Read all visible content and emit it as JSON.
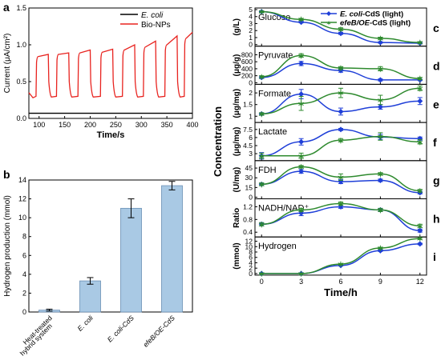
{
  "chart_data": [
    {
      "panel": "a",
      "type": "line",
      "xlabel": "Time/s",
      "ylabel": "Current (μA/cm²)",
      "xlim": [
        80,
        400
      ],
      "ylim": [
        0,
        1.5
      ],
      "xticks": [
        100,
        150,
        200,
        250,
        300,
        350,
        400
      ],
      "yticks": [
        0.0,
        0.5,
        1.0,
        1.5
      ],
      "legend": "top-right",
      "series": [
        {
          "name": "E. coli",
          "color": "#000000",
          "baseline": 0.07
        },
        {
          "name": "Bio-NPs",
          "color": "#e8231f",
          "off_level": 0.28,
          "on_periods": [
            [
              94,
              118,
              0.84,
              0.87
            ],
            [
              134,
              158,
              0.87,
              0.89
            ],
            [
              176,
              200,
              0.89,
              0.93
            ],
            [
              220,
              244,
              0.9,
              0.94
            ],
            [
              263,
              287,
              0.93,
              1.0
            ],
            [
              304,
              328,
              0.97,
              1.05
            ],
            [
              346,
              370,
              1.0,
              1.12
            ],
            [
              384,
              400,
              1.09,
              1.17
            ]
          ]
        }
      ]
    },
    {
      "panel": "b",
      "type": "bar",
      "ylabel": "Hydrogen production (mmol)",
      "ylim": [
        0,
        14
      ],
      "yticks": [
        0,
        2,
        4,
        6,
        8,
        10,
        12,
        14
      ],
      "categories": [
        "Heat-treated hybrid system",
        "E. coli",
        "E. coli-CdS",
        "efeB/OE-CdS"
      ],
      "values": [
        0.2,
        3.3,
        11.0,
        13.4
      ],
      "errors": [
        0.1,
        0.35,
        1.0,
        0.45
      ],
      "color": "#a9c9e4"
    },
    {
      "panel": "c-i",
      "type": "line",
      "xlabel": "Time/h",
      "ylabel": "Concentration",
      "x": [
        0,
        3,
        6,
        9,
        12
      ],
      "xlim": [
        -0.5,
        12.5
      ],
      "xticks": [
        0,
        3,
        6,
        9,
        12
      ],
      "legend": "top-right",
      "series_names": [
        "E. coli-CdS (light)",
        "efeB/OE-CdS (light)"
      ],
      "series_colors": [
        "#1f3fd8",
        "#2e8a2e"
      ],
      "subpanels": [
        {
          "letter": "c",
          "label": "Glucose",
          "unit": "(g/L)",
          "ylim": [
            0,
            5
          ],
          "yticks": [
            0,
            1,
            2,
            3,
            4,
            5
          ],
          "s1": [
            4.7,
            3.2,
            1.6,
            0.3,
            0.2
          ],
          "e1": [
            0.1,
            0.1,
            0.15,
            0.1,
            0.1
          ],
          "s2": [
            4.7,
            3.6,
            2.2,
            0.9,
            0.3
          ],
          "e2": [
            0.1,
            0.15,
            0.2,
            0.15,
            0.1
          ]
        },
        {
          "letter": "d",
          "label": "Pyruvate",
          "unit": "(μg/g)",
          "ylim": [
            0,
            1000
          ],
          "yticks": [
            0,
            200,
            400,
            600,
            800
          ],
          "s1": [
            150,
            550,
            350,
            80,
            80
          ],
          "e1": [
            30,
            60,
            50,
            30,
            20
          ],
          "s2": [
            170,
            780,
            420,
            400,
            120
          ],
          "e2": [
            30,
            50,
            40,
            60,
            30
          ]
        },
        {
          "letter": "e",
          "label": "Formate",
          "unit": "(μg/mg)",
          "ylim": [
            0.8,
            2.3
          ],
          "yticks": [
            1.0,
            1.5,
            2.0
          ],
          "s1": [
            1.1,
            1.95,
            1.2,
            1.4,
            1.65
          ],
          "e1": [
            0.05,
            0.2,
            0.15,
            0.1,
            0.15
          ],
          "s2": [
            1.1,
            1.55,
            2.0,
            1.7,
            2.2
          ],
          "e2": [
            0.05,
            0.3,
            0.2,
            0.2,
            0.1
          ]
        },
        {
          "letter": "f",
          "label": "Lactate",
          "unit": "(μg/mg)",
          "ylim": [
            2.0,
            8.5
          ],
          "yticks": [
            3.0,
            4.5,
            6.0,
            7.5
          ],
          "s1": [
            2.6,
            5.2,
            7.5,
            6.1,
            5.8
          ],
          "e1": [
            0.6,
            0.6,
            0.2,
            0.5,
            0.3
          ],
          "s2": [
            2.6,
            2.6,
            5.5,
            6.2,
            5.2
          ],
          "e2": [
            0.5,
            0.5,
            0.3,
            0.7,
            0.4
          ]
        },
        {
          "letter": "g",
          "label": "FDH",
          "unit": "(U/mg)",
          "ylim": [
            0,
            54
          ],
          "yticks": [
            0,
            15,
            30,
            45
          ],
          "s1": [
            20,
            40,
            24,
            26,
            7
          ],
          "e1": [
            2,
            3,
            3,
            2,
            2
          ],
          "s2": [
            20,
            47,
            31,
            36,
            10
          ],
          "e2": [
            2,
            2,
            5,
            2,
            2
          ]
        },
        {
          "letter": "h",
          "label": "NADH/NAD⁺",
          "unit": "Ratio",
          "ylim": [
            0.3,
            1.4
          ],
          "yticks": [
            0.4,
            0.8,
            1.2
          ],
          "s1": [
            0.65,
            1.0,
            1.2,
            1.1,
            0.45
          ],
          "e1": [
            0.05,
            0.08,
            0.05,
            0.05,
            0.05
          ],
          "s2": [
            0.65,
            1.1,
            1.3,
            1.1,
            0.6
          ],
          "e2": [
            0.05,
            0.05,
            0.05,
            0.05,
            0.05
          ]
        },
        {
          "letter": "i",
          "label": "Hydrogen",
          "unit": "(mmol)",
          "ylim": [
            0,
            13
          ],
          "yticks": [
            0,
            2,
            4,
            6,
            8,
            10,
            12
          ],
          "s1": [
            0,
            0,
            3,
            8.5,
            11
          ],
          "e1": [
            0.1,
            0.1,
            0.2,
            0.3,
            0.3
          ],
          "s2": [
            0,
            0,
            3.5,
            9.5,
            13
          ],
          "e2": [
            0.1,
            0.1,
            0.2,
            0.3,
            0.3
          ]
        }
      ]
    }
  ]
}
